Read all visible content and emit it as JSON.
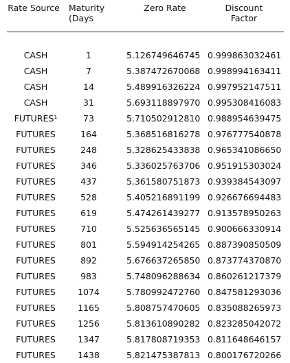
{
  "table": {
    "headers": {
      "rate_source": "Rate Source",
      "maturity_line1": "Maturity",
      "maturity_line2": "(Days",
      "zero_rate": "Zero Rate",
      "discount_line1": "Discount",
      "discount_line2": "Factor"
    },
    "rows": [
      {
        "source": "CASH",
        "maturity": "1",
        "zero_rate": "5.126749646745",
        "discount": "0.999863032461"
      },
      {
        "source": "CASH",
        "maturity": "7",
        "zero_rate": "5.387472670068",
        "discount": "0.998994163411"
      },
      {
        "source": "CASH",
        "maturity": "14",
        "zero_rate": "5.489916326224",
        "discount": "0.997952147511"
      },
      {
        "source": "CASH",
        "maturity": "31",
        "zero_rate": "5.693118897970",
        "discount": "0.995308416083"
      },
      {
        "source": "FUTURES¹",
        "maturity": "73",
        "zero_rate": "5.710502912810",
        "discount": "0.988954639475"
      },
      {
        "source": "FUTURES",
        "maturity": "164",
        "zero_rate": "5.368516816278",
        "discount": "0.976777540878"
      },
      {
        "source": "FUTURES",
        "maturity": "248",
        "zero_rate": "5.328625433838",
        "discount": "0.965341086650"
      },
      {
        "source": "FUTURES",
        "maturity": "346",
        "zero_rate": "5.336025763706",
        "discount": "0.951915303024"
      },
      {
        "source": "FUTURES",
        "maturity": "437",
        "zero_rate": "5.361580751873",
        "discount": "0.939384543097"
      },
      {
        "source": "FUTURES",
        "maturity": "528",
        "zero_rate": "5.405216891199",
        "discount": "0.926676694483"
      },
      {
        "source": "FUTURES",
        "maturity": "619",
        "zero_rate": "5.474261439277",
        "discount": "0.913578950263"
      },
      {
        "source": "FUTURES",
        "maturity": "710",
        "zero_rate": "5.525636565145",
        "discount": "0.900666330914"
      },
      {
        "source": "FUTURES",
        "maturity": "801",
        "zero_rate": "5.594914254265",
        "discount": "0.887390850509"
      },
      {
        "source": "FUTURES",
        "maturity": "892",
        "zero_rate": "5.676637265850",
        "discount": "0.873774370870"
      },
      {
        "source": "FUTURES",
        "maturity": "983",
        "zero_rate": "5.748096288634",
        "discount": "0.860261217379"
      },
      {
        "source": "FUTURES",
        "maturity": "1074",
        "zero_rate": "5.780992472760",
        "discount": "0.847581293036"
      },
      {
        "source": "FUTURES",
        "maturity": "1165",
        "zero_rate": "5.808757470605",
        "discount": "0.835088265973"
      },
      {
        "source": "FUTURES",
        "maturity": "1256",
        "zero_rate": "5.813610890282",
        "discount": "0.823285042072"
      },
      {
        "source": "FUTURES",
        "maturity": "1347",
        "zero_rate": "5.817808719353",
        "discount": "0.811648646157"
      },
      {
        "source": "FUTURES",
        "maturity": "1438",
        "zero_rate": "5.821475387813",
        "discount": "0.800176720266"
      }
    ]
  }
}
